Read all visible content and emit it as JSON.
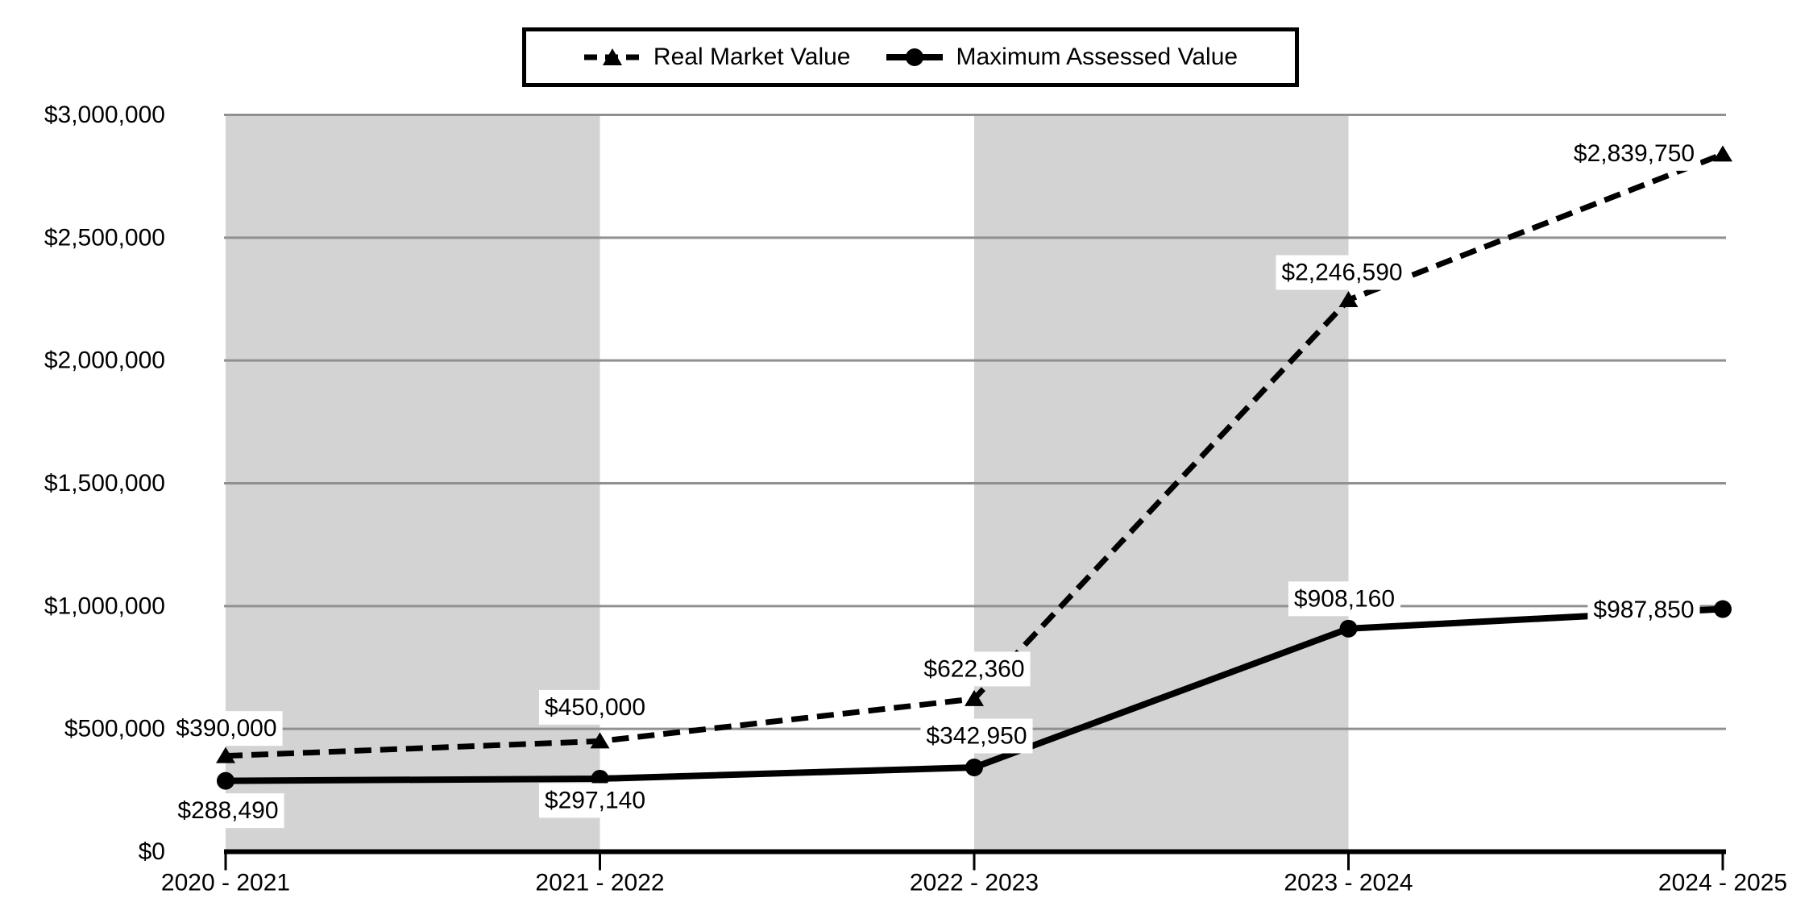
{
  "chart_data": {
    "type": "line",
    "title": "",
    "categories": [
      "2020 - 2021",
      "2021 - 2022",
      "2022 - 2023",
      "2023 - 2024",
      "2024 - 2025"
    ],
    "series": [
      {
        "id": "real-market-value",
        "name": "Real Market Value",
        "line_style": "dashed",
        "line_width": 7,
        "marker": "triangle",
        "values": [
          390000,
          450000,
          622360,
          2246590,
          2839750
        ],
        "labels": [
          "$390,000",
          "$450,000",
          "$622,360",
          "$2,246,590",
          "$2,839,750"
        ],
        "label_offsets": [
          [
            1,
            -34
          ],
          [
            -6,
            -42
          ],
          [
            0,
            -37
          ],
          [
            -8,
            -34
          ],
          [
            -110,
            -1
          ]
        ]
      },
      {
        "id": "maximum-assessed-value",
        "name": "Maximum Assessed Value",
        "line_style": "solid",
        "line_width": 8,
        "marker": "circle",
        "values": [
          288490,
          297140,
          342950,
          908160,
          987850
        ],
        "labels": [
          "$288,490",
          "$297,140",
          "$342,950",
          "$908,160",
          "$987,850"
        ],
        "label_offsets": [
          [
            3,
            37
          ],
          [
            -6,
            27
          ],
          [
            3,
            -39
          ],
          [
            -5,
            -37
          ],
          [
            -98,
            1
          ]
        ]
      }
    ],
    "y_axis": {
      "min": 0,
      "max": 3000000,
      "step": 500000,
      "tick_labels": [
        "$0",
        "$500,000",
        "$1,000,000",
        "$1,500,000",
        "$2,000,000",
        "$2,500,000",
        "$3,000,000"
      ]
    },
    "x_axis": {
      "tick_labels": [
        "2020 - 2021",
        "2021 - 2022",
        "2022 - 2023",
        "2023 - 2024",
        "2024 - 2025"
      ]
    },
    "shaded_bands": [
      [
        0,
        1
      ],
      [
        2,
        3
      ]
    ],
    "grid": "horizontal",
    "legend_position": "top",
    "colors": {
      "band": "#d3d3d3",
      "gridline": "#909090",
      "series_line": "#000000",
      "axis_line": "#000000",
      "label_bg": "#ffffff",
      "text": "#000000"
    }
  }
}
